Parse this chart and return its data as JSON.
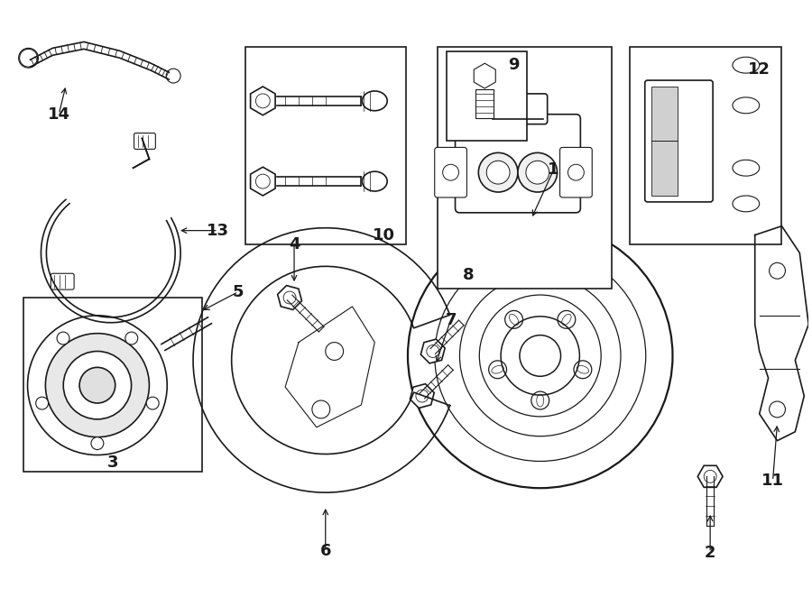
{
  "background_color": "#ffffff",
  "line_color": "#1a1a1a",
  "fig_width": 9.0,
  "fig_height": 6.62,
  "dpi": 100
}
